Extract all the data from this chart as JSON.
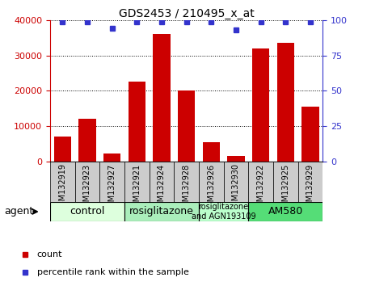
{
  "title": "GDS2453 / 210495_x_at",
  "samples": [
    "GSM132919",
    "GSM132923",
    "GSM132927",
    "GSM132921",
    "GSM132924",
    "GSM132928",
    "GSM132926",
    "GSM132930",
    "GSM132922",
    "GSM132925",
    "GSM132929"
  ],
  "counts": [
    7000,
    12000,
    2200,
    22500,
    36000,
    20000,
    5500,
    1500,
    32000,
    33500,
    15500
  ],
  "percentile_ranks": [
    99,
    99,
    94,
    99,
    99,
    99,
    99,
    93,
    99,
    99,
    99
  ],
  "ylim_left": [
    0,
    40000
  ],
  "ylim_right": [
    0,
    100
  ],
  "yticks_left": [
    0,
    10000,
    20000,
    30000,
    40000
  ],
  "yticks_right": [
    0,
    25,
    50,
    75,
    100
  ],
  "bar_color": "#cc0000",
  "dot_color": "#3333cc",
  "groups": [
    {
      "label": "control",
      "start": 0,
      "end": 3,
      "color": "#ddffdd"
    },
    {
      "label": "rosiglitazone",
      "start": 3,
      "end": 6,
      "color": "#aaeebb"
    },
    {
      "label": "rosiglitazone\nand AGN193109",
      "start": 6,
      "end": 8,
      "color": "#bbffcc"
    },
    {
      "label": "AM580",
      "start": 8,
      "end": 11,
      "color": "#55dd77"
    }
  ],
  "left_axis_color": "#cc0000",
  "right_axis_color": "#3333cc",
  "tick_bg_color": "#cccccc",
  "legend_count_color": "#cc0000",
  "legend_dot_color": "#3333cc"
}
